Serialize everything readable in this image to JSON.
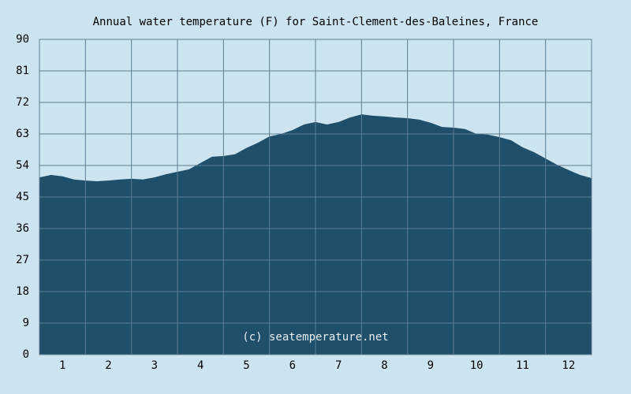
{
  "chart_data": {
    "type": "area",
    "title": "Annual water temperature (F) for Saint-Clement-des-Baleines, France",
    "watermark": "(c) seatemperature.net",
    "x": [
      0.5,
      0.75,
      1,
      1.25,
      1.5,
      1.75,
      2,
      2.25,
      2.5,
      2.75,
      3,
      3.25,
      3.5,
      3.75,
      4,
      4.25,
      4.5,
      4.75,
      5,
      5.25,
      5.5,
      5.75,
      6,
      6.25,
      6.5,
      6.75,
      7,
      7.25,
      7.5,
      7.75,
      8,
      8.25,
      8.5,
      8.75,
      9,
      9.25,
      9.5,
      9.75,
      10,
      10.25,
      10.5,
      10.75,
      11,
      11.25,
      11.5,
      11.75,
      12,
      12.25,
      12.5
    ],
    "values": [
      50.6,
      51.3,
      50.9,
      50.0,
      49.7,
      49.5,
      49.7,
      50.0,
      50.2,
      50.0,
      50.6,
      51.5,
      52.2,
      52.9,
      54.7,
      56.5,
      56.7,
      57.2,
      59.0,
      60.5,
      62.3,
      63.0,
      64.1,
      65.7,
      66.4,
      65.7,
      66.4,
      67.7,
      68.6,
      68.2,
      68.0,
      67.7,
      67.5,
      67.1,
      66.2,
      65.0,
      64.8,
      64.4,
      63.0,
      62.8,
      62.1,
      61.2,
      59.2,
      57.8,
      56.0,
      54.2,
      52.7,
      51.3,
      50.4
    ],
    "color": "#1f4f6b",
    "xlim": [
      0.5,
      12.5
    ],
    "xticks": [
      1,
      2,
      3,
      4,
      5,
      6,
      7,
      8,
      9,
      10,
      11,
      12
    ],
    "ylim": [
      0,
      90
    ],
    "yticks": [
      0,
      9,
      18,
      27,
      36,
      45,
      54,
      63,
      72,
      81,
      90
    ],
    "grid": true
  }
}
